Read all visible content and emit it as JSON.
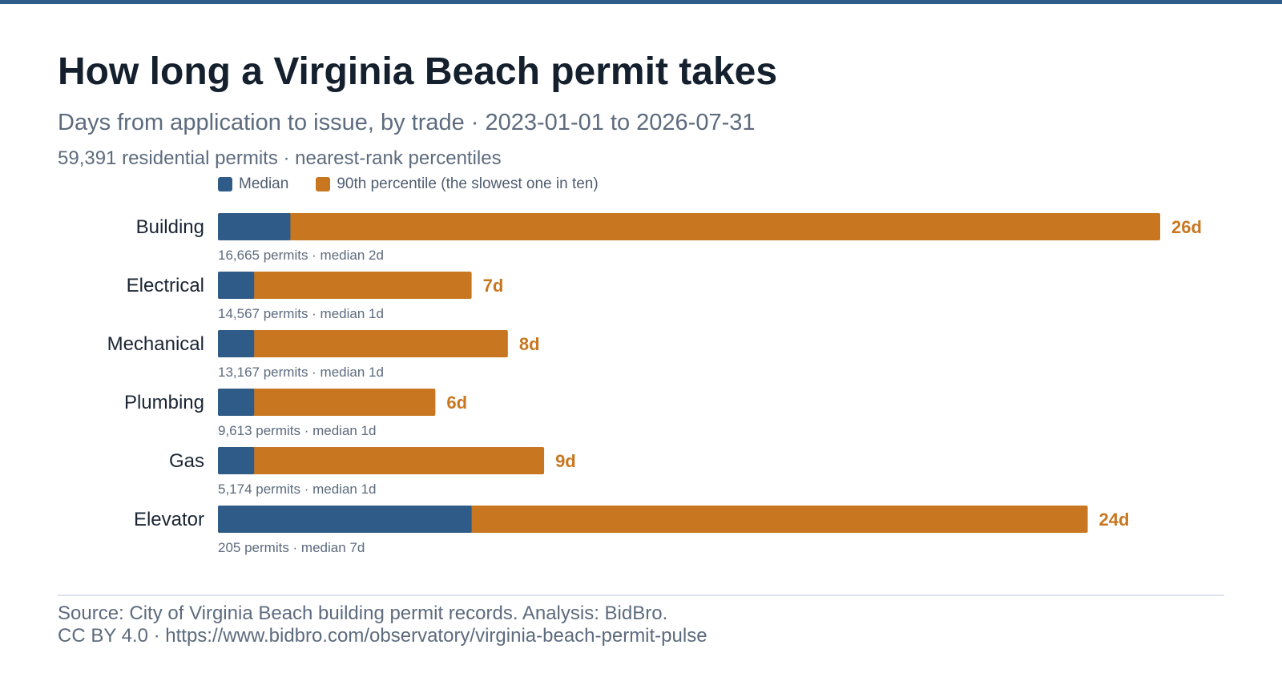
{
  "header": {
    "title": "How long a Virginia Beach permit takes",
    "subtitle": "Days from application to issue, by trade · 2023-01-01 to 2026-07-31",
    "subnote": "59,391 residential permits · nearest-rank percentiles"
  },
  "legend": {
    "median_label": "Median",
    "p90_label": "90th percentile (the slowest one in ten)"
  },
  "colors": {
    "median": "#2e5b87",
    "p90": "#c87720",
    "label": "#1a2433",
    "subtext": "#5d6b7e"
  },
  "chart_data": {
    "type": "bar",
    "orientation": "horizontal",
    "unit": "d",
    "categories": [
      "Building",
      "Electrical",
      "Mechanical",
      "Plumbing",
      "Gas",
      "Elevator"
    ],
    "series": [
      {
        "name": "Median",
        "values": [
          2,
          1,
          1,
          1,
          1,
          7
        ]
      },
      {
        "name": "90th percentile (the slowest one in ten)",
        "values": [
          26,
          7,
          8,
          6,
          9,
          24
        ]
      }
    ],
    "value_labels": [
      "26d",
      "7d",
      "8d",
      "6d",
      "9d",
      "24d"
    ],
    "row_notes": [
      "16,665 permits · median 2d",
      "14,567 permits · median 1d",
      "13,167 permits · median 1d",
      "9,613 permits · median 1d",
      "5,174 permits · median 1d",
      "205 permits · median 7d"
    ],
    "xlim": [
      0,
      26
    ],
    "grid": false,
    "legend_position": "top-left"
  },
  "footer": {
    "source": "Source: City of Virginia Beach building permit records. Analysis: BidBro.",
    "license": "CC BY 4.0 · https://www.bidbro.com/observatory/virginia-beach-permit-pulse"
  }
}
